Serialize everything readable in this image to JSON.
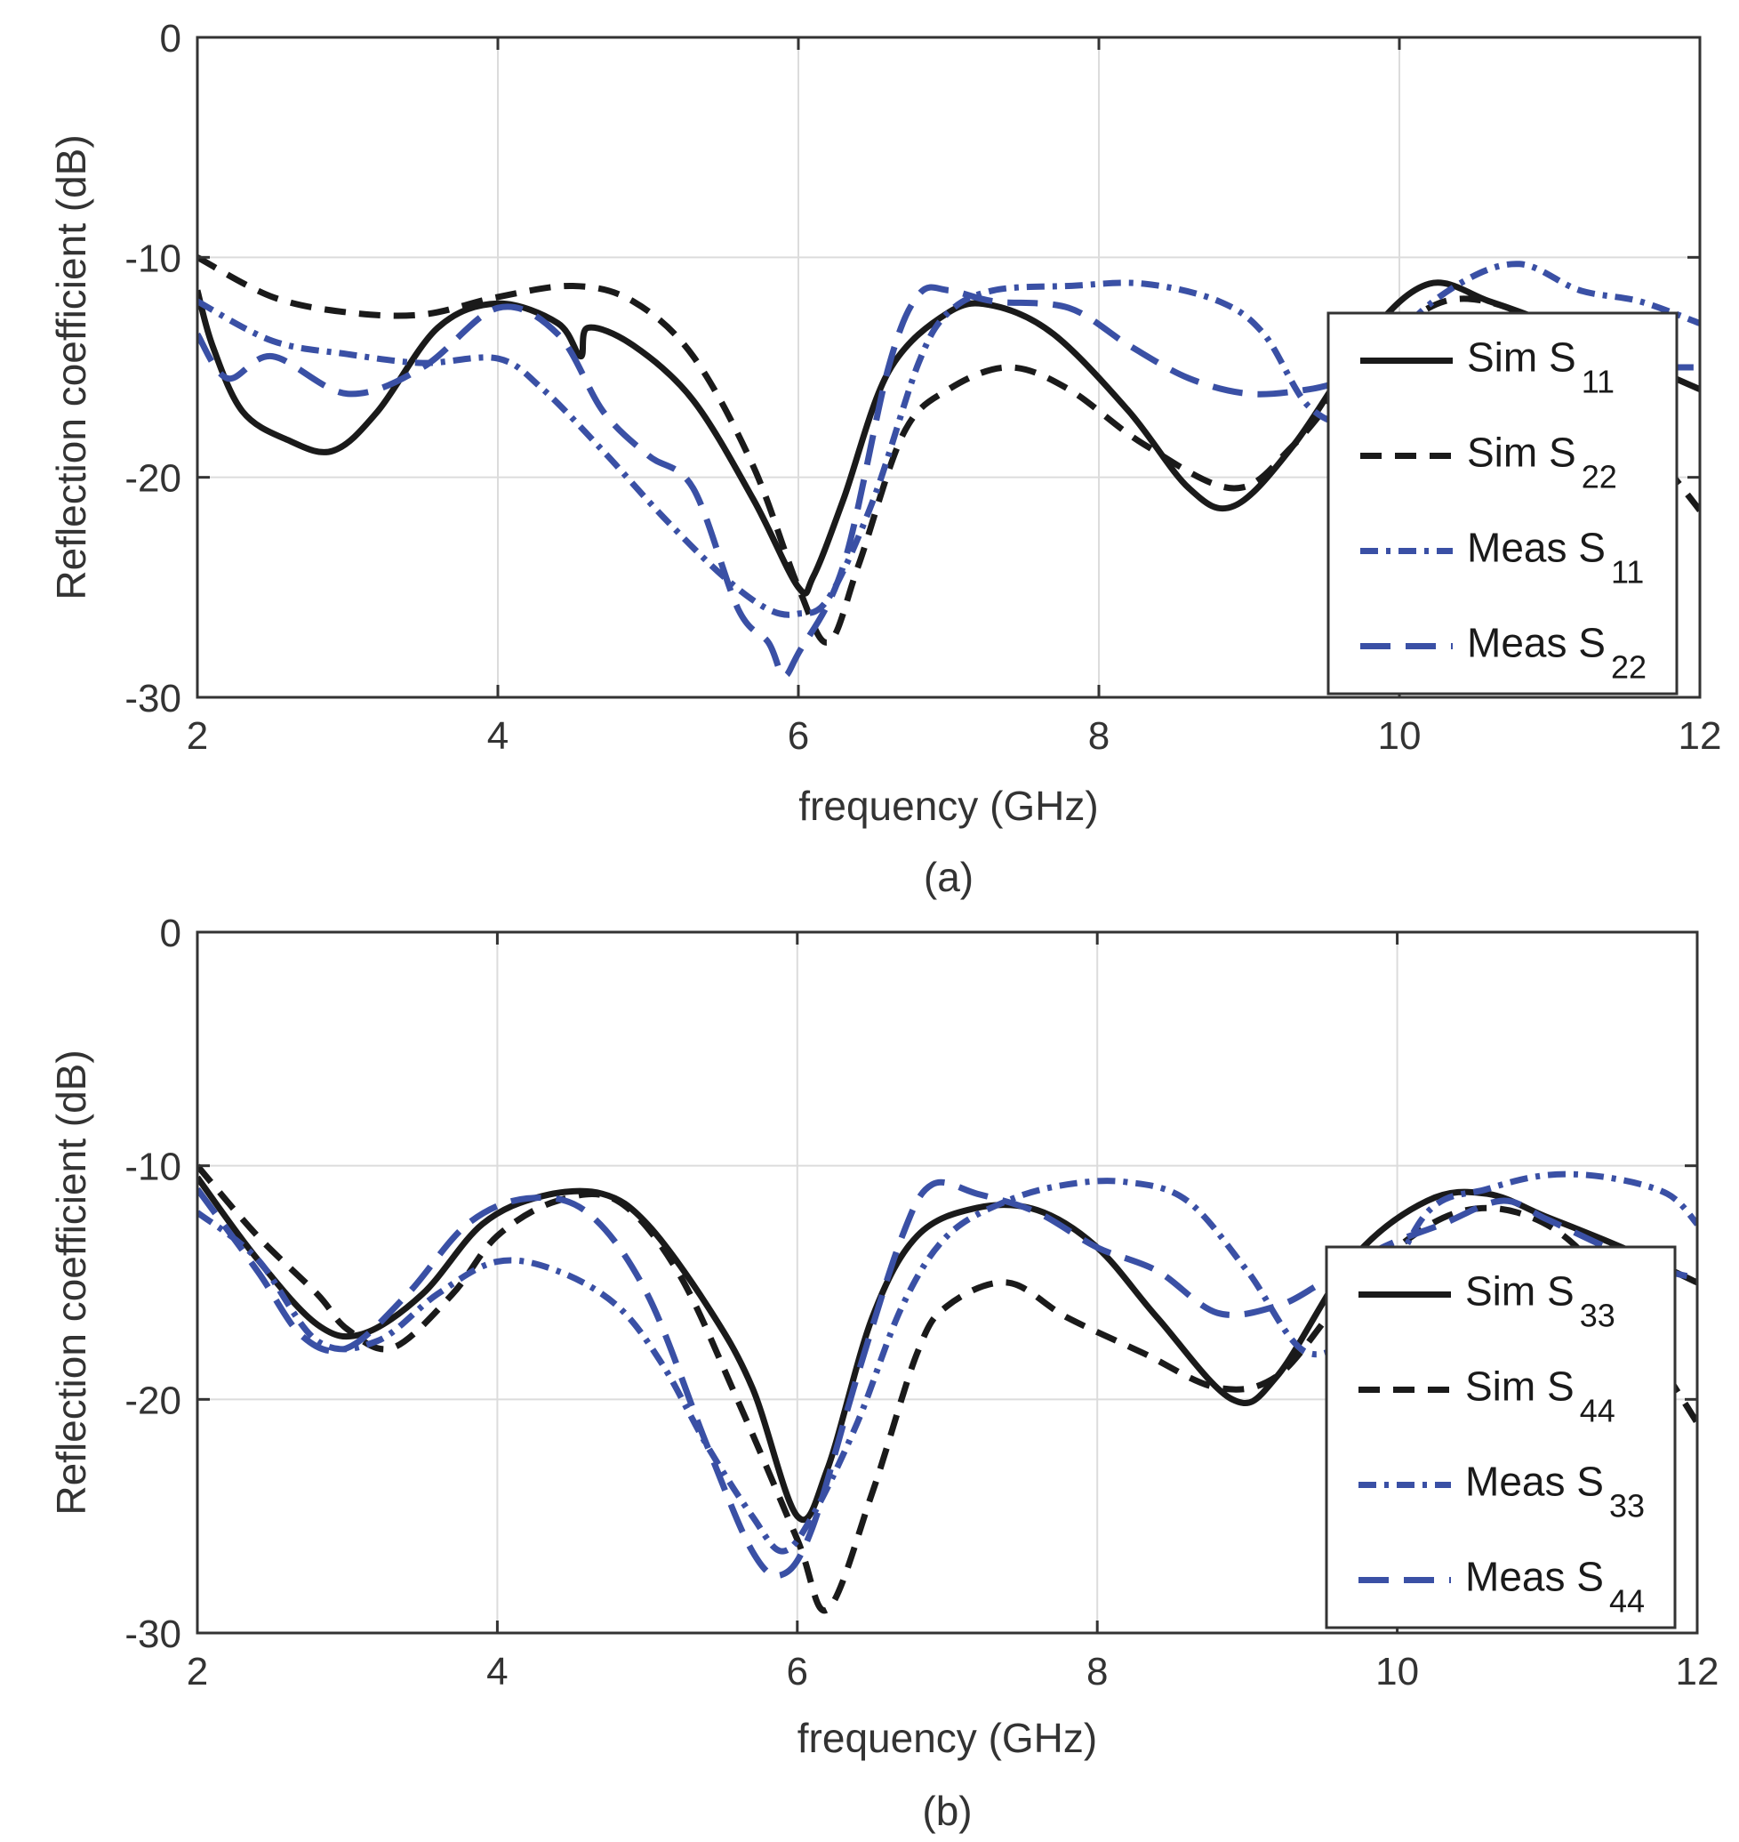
{
  "chart_data": [
    {
      "type": "line",
      "panel_label": "(a)",
      "xlabel": "frequency (GHz)",
      "ylabel": "Reflection coefficient (dB)",
      "xlim": [
        2,
        12
      ],
      "ylim": [
        -30,
        0
      ],
      "xticks": [
        "2",
        "4",
        "6",
        "8",
        "10",
        "12"
      ],
      "yticks": [
        "0",
        "-10",
        "-20",
        "-30"
      ],
      "grid": true,
      "legend_position": "right",
      "series": [
        {
          "name": "Sim S",
          "sub": "11",
          "color": "#1a1a1a",
          "style": "solid",
          "x": [
            2,
            2.1,
            2.3,
            2.6,
            2.9,
            3.2,
            3.6,
            4.0,
            4.4,
            4.55,
            4.6,
            4.9,
            5.3,
            5.7,
            6.0,
            6.1,
            6.3,
            6.6,
            7.0,
            7.3,
            7.7,
            8.2,
            8.6,
            8.9,
            9.3,
            9.8,
            10.2,
            10.6,
            11.0,
            11.5,
            12.0
          ],
          "y": [
            -11.5,
            -14,
            -17,
            -18.3,
            -18.8,
            -17,
            -13.2,
            -12.1,
            -13,
            -14.5,
            -13.2,
            -14,
            -16.5,
            -21,
            -25,
            -24.5,
            -21,
            -15.2,
            -12.5,
            -12.2,
            -13.5,
            -17,
            -20.5,
            -21.3,
            -18.5,
            -13.5,
            -11.2,
            -12,
            -13,
            -14.5,
            -16
          ]
        },
        {
          "name": "Sim S",
          "sub": "22",
          "color": "#1a1a1a",
          "style": "dash",
          "x": [
            2,
            2.5,
            3.0,
            3.5,
            4.0,
            4.5,
            4.9,
            5.3,
            5.7,
            6.0,
            6.2,
            6.4,
            6.7,
            7.0,
            7.4,
            7.8,
            8.3,
            8.9,
            9.3,
            9.8,
            10.3,
            10.8,
            11.2,
            11.6,
            12.0
          ],
          "y": [
            -10,
            -11.8,
            -12.5,
            -12.6,
            -11.8,
            -11.3,
            -12,
            -14.5,
            -19.5,
            -25,
            -27.5,
            -24,
            -18,
            -16,
            -15,
            -16,
            -18.5,
            -20.5,
            -18.5,
            -14.5,
            -12,
            -12.5,
            -14.5,
            -18,
            -21.5
          ]
        },
        {
          "name": "Meas S",
          "sub": "11",
          "color": "#3a50a5",
          "style": "dashdot",
          "x": [
            2,
            2.5,
            3.0,
            3.5,
            4.0,
            4.3,
            4.7,
            5.1,
            5.5,
            5.8,
            6.0,
            6.2,
            6.5,
            6.8,
            7.0,
            7.3,
            7.8,
            8.3,
            8.8,
            9.1,
            9.4,
            9.7,
            10.0,
            10.4,
            10.8,
            11.2,
            11.6,
            12.0
          ],
          "y": [
            -12,
            -13.8,
            -14.4,
            -14.8,
            -14.6,
            -16,
            -18.8,
            -21.8,
            -24.5,
            -26,
            -26.2,
            -25.5,
            -21,
            -14.8,
            -12.5,
            -11.5,
            -11.3,
            -11.2,
            -12,
            -13.5,
            -16.8,
            -17.2,
            -13.5,
            -11.2,
            -10.3,
            -11.5,
            -12,
            -13
          ]
        },
        {
          "name": "Meas S",
          "sub": "22",
          "color": "#3a50a5",
          "style": "longdash",
          "x": [
            2,
            2.2,
            2.5,
            3.0,
            3.5,
            4.0,
            4.4,
            4.7,
            5.0,
            5.3,
            5.6,
            5.8,
            5.9,
            6.0,
            6.3,
            6.6,
            6.8,
            7.0,
            7.3,
            7.8,
            8.2,
            8.6,
            9.0,
            9.4,
            9.7,
            10.0,
            10.4,
            10.8,
            11.2,
            11.6,
            12.0
          ],
          "y": [
            -13.5,
            -15.5,
            -14.5,
            -16.2,
            -15,
            -12.3,
            -13.5,
            -17,
            -19,
            -20.5,
            -26,
            -27.5,
            -29,
            -28,
            -24,
            -15,
            -11.7,
            -11.5,
            -12,
            -12.3,
            -14,
            -15.5,
            -16.2,
            -16,
            -15.5,
            -15.2,
            -15.2,
            -15,
            -15,
            -15,
            -15
          ]
        }
      ]
    },
    {
      "type": "line",
      "panel_label": "(b)",
      "xlabel": "frequency (GHz)",
      "ylabel": "Reflection coefficient (dB)",
      "xlim": [
        2,
        12
      ],
      "ylim": [
        -30,
        0
      ],
      "xticks": [
        "2",
        "4",
        "6",
        "8",
        "10",
        "12"
      ],
      "yticks": [
        "0",
        "-10",
        "-20",
        "-30"
      ],
      "grid": true,
      "legend_position": "right",
      "series": [
        {
          "name": "Sim S",
          "sub": "33",
          "color": "#1a1a1a",
          "style": "solid",
          "x": [
            2,
            2.4,
            2.8,
            3.1,
            3.5,
            3.9,
            4.3,
            4.7,
            5.0,
            5.4,
            5.7,
            6.0,
            6.2,
            6.5,
            6.8,
            7.2,
            7.6,
            8.0,
            8.4,
            8.9,
            9.2,
            9.7,
            10.2,
            10.6,
            11.0,
            11.5,
            12.0
          ],
          "y": [
            -10.5,
            -14,
            -16.8,
            -17.2,
            -15.5,
            -12.5,
            -11.3,
            -11.2,
            -12.5,
            -16,
            -19.5,
            -25,
            -23,
            -16.5,
            -13,
            -11.8,
            -11.9,
            -13.5,
            -16.5,
            -20,
            -19,
            -14,
            -11.5,
            -11.2,
            -12.2,
            -13.5,
            -15
          ]
        },
        {
          "name": "Sim S",
          "sub": "44",
          "color": "#1a1a1a",
          "style": "dash",
          "x": [
            2,
            2.4,
            2.8,
            3.0,
            3.3,
            3.7,
            4.0,
            4.4,
            4.8,
            5.2,
            5.6,
            6.0,
            6.2,
            6.5,
            6.8,
            7.0,
            7.4,
            7.8,
            8.3,
            8.8,
            9.2,
            9.6,
            10.0,
            10.4,
            10.8,
            11.2,
            11.6,
            12.0
          ],
          "y": [
            -10,
            -13,
            -15.5,
            -17,
            -17.8,
            -15.5,
            -13,
            -11.5,
            -11.5,
            -14.5,
            -20,
            -26,
            -29,
            -24,
            -18,
            -16,
            -15,
            -16.5,
            -18,
            -19.5,
            -19,
            -16,
            -13.5,
            -12,
            -12,
            -13.5,
            -17,
            -21
          ]
        },
        {
          "name": "Meas S",
          "sub": "33",
          "color": "#3a50a5",
          "style": "dashdot",
          "x": [
            2,
            2.4,
            2.8,
            3.2,
            3.6,
            4.0,
            4.4,
            4.8,
            5.1,
            5.4,
            5.7,
            5.9,
            6.1,
            6.4,
            6.7,
            7.0,
            7.4,
            7.8,
            8.2,
            8.6,
            9.0,
            9.4,
            9.8,
            10.2,
            10.6,
            11.0,
            11.4,
            11.8,
            12.0
          ],
          "y": [
            -12,
            -14,
            -17.5,
            -17.5,
            -15.5,
            -14.1,
            -14.5,
            -16,
            -18.5,
            -22,
            -25,
            -26.5,
            -25,
            -21,
            -16,
            -13,
            -11.5,
            -10.8,
            -10.7,
            -11.5,
            -14.5,
            -18,
            -16.5,
            -12,
            -11,
            -10.4,
            -10.5,
            -11.2,
            -12.5
          ]
        },
        {
          "name": "Meas S",
          "sub": "44",
          "color": "#3a50a5",
          "style": "longdash",
          "x": [
            2,
            2.4,
            2.7,
            3.0,
            3.4,
            3.8,
            4.2,
            4.6,
            5.0,
            5.4,
            5.7,
            5.9,
            6.1,
            6.4,
            6.7,
            6.9,
            7.2,
            7.6,
            8.0,
            8.4,
            8.8,
            9.2,
            9.5,
            9.9,
            10.3,
            10.7,
            11.0,
            11.4,
            11.8,
            12.0
          ],
          "y": [
            -11,
            -14.5,
            -17.3,
            -17.8,
            -15.5,
            -12.5,
            -11.4,
            -12,
            -15.5,
            -22,
            -26.5,
            -27.5,
            -25.5,
            -19,
            -13,
            -10.8,
            -11.2,
            -12,
            -13.5,
            -14.5,
            -16.3,
            -16,
            -15,
            -13.5,
            -12.5,
            -11.5,
            -12.3,
            -13.5,
            -14.5,
            -14.8
          ]
        }
      ]
    }
  ]
}
